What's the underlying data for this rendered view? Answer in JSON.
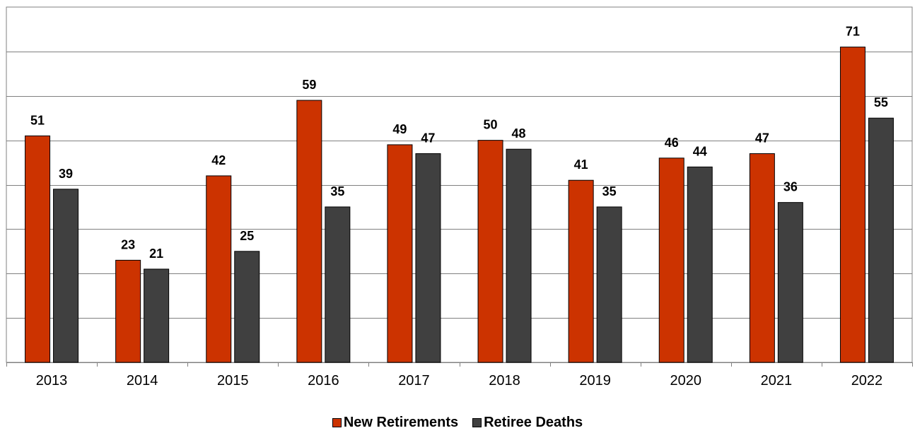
{
  "chart_data": {
    "type": "bar",
    "categories": [
      "2013",
      "2014",
      "2015",
      "2016",
      "2017",
      "2018",
      "2019",
      "2020",
      "2021",
      "2022"
    ],
    "series": [
      {
        "name": "New Retirements",
        "color": "#cc3300",
        "values": [
          51,
          23,
          42,
          59,
          49,
          50,
          41,
          46,
          47,
          71
        ]
      },
      {
        "name": "Retiree Deaths",
        "color": "#404040",
        "values": [
          39,
          21,
          25,
          35,
          47,
          48,
          35,
          44,
          36,
          55
        ]
      }
    ],
    "title": "",
    "xlabel": "",
    "ylabel": "",
    "ylim": [
      0,
      80
    ],
    "y_gridlines": [
      10,
      20,
      30,
      40,
      50,
      60,
      70
    ],
    "y_tick_labels_shown": false,
    "data_labels": true,
    "grid": true,
    "legend_position": "bottom-center",
    "gridline_color": "#808080",
    "axis_color": "#808080"
  }
}
